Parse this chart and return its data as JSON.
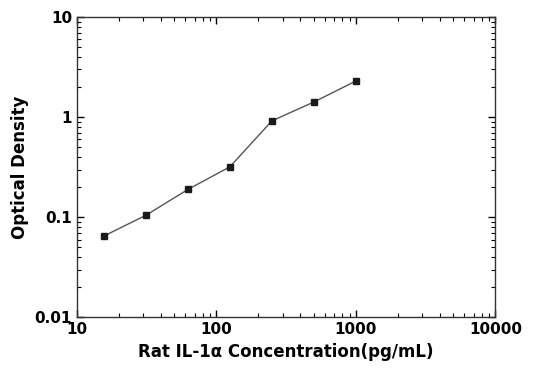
{
  "x": [
    15.6,
    31.25,
    62.5,
    125,
    250,
    500,
    1000
  ],
  "y": [
    0.065,
    0.105,
    0.19,
    0.32,
    0.92,
    1.42,
    2.3
  ],
  "marker": "s",
  "marker_size": 5,
  "marker_color": "#1a1a1a",
  "line_color": "#555555",
  "line_width": 1.0,
  "xlabel": "Rat IL-1α Concentration(pg/mL)",
  "ylabel": "Optical Density",
  "xlim": [
    10,
    10000
  ],
  "ylim": [
    0.01,
    10
  ],
  "xtick_vals": [
    10,
    100,
    1000,
    10000
  ],
  "xtick_labels": [
    "10",
    "100",
    "1000",
    "10000"
  ],
  "ytick_vals": [
    0.01,
    0.1,
    1,
    10
  ],
  "ytick_labels": [
    "0.01",
    "0.1",
    "1",
    "10"
  ],
  "xlabel_fontsize": 12,
  "ylabel_fontsize": 12,
  "tick_fontsize": 11,
  "background_color": "#ffffff",
  "spine_color": "#333333",
  "bold_labels": true
}
